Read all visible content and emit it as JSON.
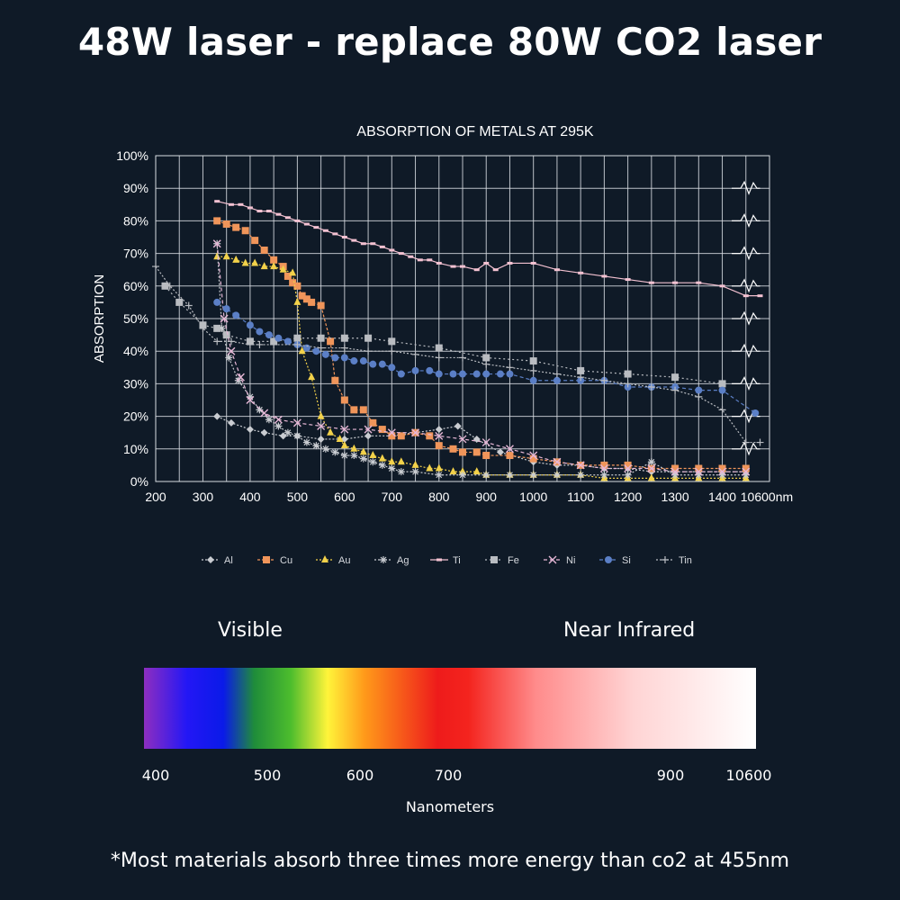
{
  "headline": "48W laser - replace 80W CO2 laser",
  "chart_data": {
    "type": "line",
    "title": "ABSORPTION OF METALS AT 295K",
    "xlabel": "",
    "ylabel": "ABSORPTION",
    "x_tick_labels": [
      "200",
      "300",
      "400",
      "500",
      "600",
      "700",
      "800",
      "900",
      "1000",
      "1100",
      "1200",
      "1300",
      "1400",
      "10600nm"
    ],
    "y_tick_labels": [
      "0%",
      "10%",
      "20%",
      "30%",
      "40%",
      "50%",
      "60%",
      "70%",
      "80%",
      "90%",
      "100%"
    ],
    "ylim": [
      0,
      100
    ],
    "xlim": [
      200,
      1500
    ],
    "x_note": "last tick represents 10600nm, plotted at position 1450; break marks drawn near it",
    "grid": true,
    "legend_position": "bottom",
    "colors": {
      "background": "#0f1a27",
      "grid": "#d9dde3",
      "axis_text": "#ffffff"
    },
    "series": [
      {
        "name": "Al",
        "marker": "diamond",
        "color": "#c9ccd1",
        "dash": "2,2",
        "x": [
          330,
          360,
          400,
          430,
          470,
          500,
          550,
          600,
          650,
          700,
          750,
          800,
          840,
          880,
          930,
          1000,
          1050,
          1100,
          1150,
          1200,
          1250,
          1300,
          1350,
          1400,
          1450
        ],
        "y": [
          20,
          18,
          16,
          15,
          14,
          14,
          13,
          13,
          14,
          14,
          15,
          16,
          17,
          13,
          9,
          6,
          5,
          5,
          4,
          4,
          3,
          3,
          3,
          3,
          3
        ]
      },
      {
        "name": "Cu",
        "marker": "square",
        "color": "#f0955a",
        "dash": "3,2",
        "x": [
          330,
          350,
          370,
          390,
          410,
          430,
          450,
          470,
          480,
          490,
          500,
          510,
          520,
          530,
          550,
          570,
          580,
          600,
          620,
          640,
          660,
          680,
          700,
          720,
          750,
          780,
          800,
          830,
          850,
          880,
          900,
          950,
          1000,
          1050,
          1100,
          1150,
          1200,
          1250,
          1300,
          1350,
          1400,
          1450
        ],
        "y": [
          80,
          79,
          78,
          77,
          74,
          71,
          68,
          66,
          63,
          61,
          60,
          57,
          56,
          55,
          54,
          43,
          31,
          25,
          22,
          22,
          18,
          16,
          14,
          14,
          15,
          14,
          11,
          10,
          9,
          9,
          8,
          8,
          7,
          6,
          5,
          5,
          5,
          4,
          4,
          4,
          4,
          4
        ]
      },
      {
        "name": "Au",
        "marker": "triangle",
        "color": "#f2d14a",
        "dash": "2,2",
        "x": [
          330,
          350,
          370,
          390,
          410,
          430,
          450,
          470,
          490,
          500,
          510,
          530,
          550,
          570,
          590,
          600,
          620,
          640,
          660,
          680,
          700,
          720,
          750,
          780,
          800,
          830,
          850,
          880,
          900,
          950,
          1000,
          1050,
          1100,
          1150,
          1200,
          1250,
          1300,
          1350,
          1400,
          1450
        ],
        "y": [
          69,
          69,
          68,
          67,
          67,
          66,
          66,
          65,
          64,
          55,
          40,
          32,
          20,
          15,
          13,
          11,
          10,
          9,
          8,
          7,
          6,
          6,
          5,
          4,
          4,
          3,
          3,
          3,
          2,
          2,
          2,
          2,
          2,
          1,
          1,
          1,
          1,
          1,
          1,
          1
        ]
      },
      {
        "name": "Ag",
        "marker": "star",
        "color": "#c9ccd1",
        "dash": "2,2",
        "x": [
          330,
          340,
          355,
          375,
          400,
          420,
          440,
          460,
          480,
          500,
          520,
          540,
          560,
          580,
          600,
          620,
          640,
          660,
          680,
          700,
          720,
          750,
          800,
          850,
          900,
          950,
          1000,
          1050,
          1100,
          1150,
          1200,
          1250,
          1300,
          1350,
          1400,
          1450
        ],
        "y": [
          73,
          47,
          38,
          31,
          26,
          22,
          19,
          17,
          15,
          14,
          12,
          11,
          10,
          9,
          8,
          8,
          7,
          6,
          5,
          4,
          3,
          3,
          2,
          2,
          2,
          2,
          2,
          2,
          2,
          2,
          2,
          6,
          2,
          2,
          2,
          2
        ]
      },
      {
        "name": "Ti",
        "marker": "dash",
        "color": "#f4c2d2",
        "dash": "",
        "x": [
          330,
          360,
          380,
          400,
          420,
          440,
          460,
          480,
          500,
          520,
          540,
          560,
          580,
          600,
          620,
          640,
          660,
          680,
          700,
          720,
          740,
          760,
          780,
          800,
          830,
          850,
          880,
          900,
          920,
          950,
          1000,
          1050,
          1100,
          1150,
          1200,
          1250,
          1300,
          1350,
          1400,
          1450,
          1480
        ],
        "y": [
          86,
          85,
          85,
          84,
          83,
          83,
          82,
          81,
          80,
          79,
          78,
          77,
          76,
          75,
          74,
          73,
          73,
          72,
          71,
          70,
          69,
          68,
          68,
          67,
          66,
          66,
          65,
          67,
          65,
          67,
          67,
          65,
          64,
          63,
          62,
          61,
          61,
          61,
          60,
          57,
          57
        ]
      },
      {
        "name": "Fe",
        "marker": "square",
        "color": "#b9bcc1",
        "dash": "2,3",
        "x": [
          220,
          250,
          300,
          330,
          350,
          400,
          450,
          500,
          550,
          600,
          650,
          700,
          800,
          900,
          1000,
          1100,
          1200,
          1300,
          1400
        ],
        "y": [
          60,
          55,
          48,
          47,
          45,
          43,
          43,
          44,
          44,
          44,
          44,
          43,
          41,
          38,
          37,
          34,
          33,
          32,
          30
        ]
      },
      {
        "name": "Ni",
        "marker": "x",
        "color": "#e6b7d6",
        "dash": "4,3",
        "x": [
          330,
          345,
          360,
          380,
          400,
          430,
          460,
          500,
          550,
          600,
          650,
          700,
          750,
          800,
          850,
          900,
          950,
          1000,
          1050,
          1100,
          1150,
          1200,
          1250,
          1300,
          1350,
          1400,
          1450
        ],
        "y": [
          73,
          50,
          40,
          32,
          25,
          21,
          19,
          18,
          17,
          16,
          16,
          15,
          15,
          14,
          13,
          12,
          10,
          8,
          6,
          5,
          4,
          4,
          4,
          3,
          3,
          3,
          3
        ]
      },
      {
        "name": "Si",
        "marker": "circle",
        "color": "#5b7fc6",
        "dash": "4,3",
        "x": [
          330,
          350,
          370,
          400,
          420,
          440,
          460,
          480,
          500,
          520,
          540,
          560,
          580,
          600,
          620,
          640,
          660,
          680,
          700,
          720,
          750,
          780,
          800,
          830,
          850,
          880,
          900,
          930,
          950,
          1000,
          1050,
          1100,
          1150,
          1200,
          1250,
          1300,
          1350,
          1400,
          1470
        ],
        "y": [
          55,
          53,
          51,
          48,
          46,
          45,
          44,
          43,
          42,
          41,
          40,
          39,
          38,
          38,
          37,
          37,
          36,
          36,
          35,
          33,
          34,
          34,
          33,
          33,
          33,
          33,
          33,
          33,
          33,
          31,
          31,
          31,
          31,
          29,
          29,
          29,
          28,
          28,
          21
        ]
      },
      {
        "name": "Tin",
        "marker": "plus",
        "color": "#b9bcc1",
        "dash": "2,2",
        "x": [
          200,
          230,
          270,
          300,
          330,
          360,
          400,
          420,
          450,
          500,
          550,
          600,
          650,
          700,
          750,
          800,
          850,
          900,
          950,
          1000,
          1050,
          1100,
          1150,
          1200,
          1250,
          1300,
          1350,
          1400,
          1450,
          1480
        ],
        "y": [
          66,
          60,
          54,
          47,
          43,
          43,
          42,
          42,
          42,
          42,
          41,
          41,
          40,
          40,
          39,
          38,
          38,
          36,
          35,
          34,
          33,
          32,
          31,
          30,
          29,
          28,
          26,
          22,
          12,
          12
        ]
      }
    ]
  },
  "spectrum": {
    "left_label": "Visible",
    "right_label": "Near Infrared",
    "ticks": [
      "400",
      "500",
      "600",
      "700",
      "900",
      "10600"
    ],
    "axis_label": "Nanometers",
    "gradient_colors": [
      "#8e2ec0",
      "#2317f5",
      "#0a1ae8",
      "#1f8c3a",
      "#4dbd2d",
      "#fff43a",
      "#ff9a1a",
      "#ee1b1b",
      "#f4241e",
      "#ff8b8b",
      "#ffd4d4",
      "#ffffff"
    ]
  },
  "footnote": "*Most materials absorb three times more energy than co2 at 455nm"
}
